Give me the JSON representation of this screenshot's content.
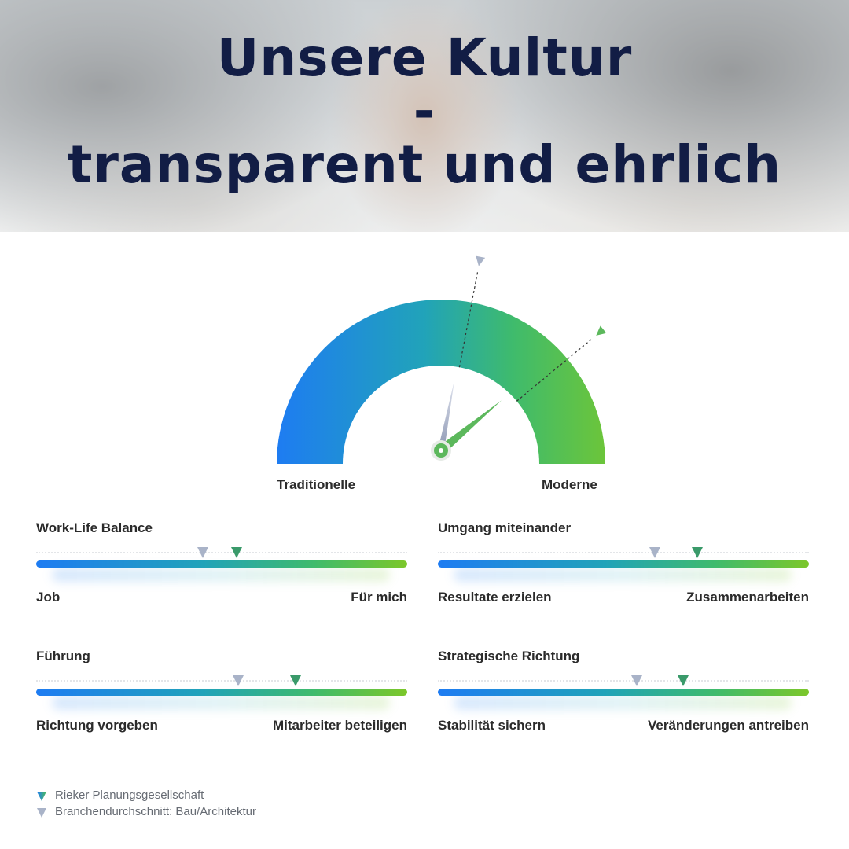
{
  "hero": {
    "title_lines": [
      "Unsere Kultur",
      "-",
      "transparent und ehrlich"
    ]
  },
  "colors": {
    "title": "#121d45",
    "company_marker": "#3a9a6a",
    "average_marker": "#a9b3c8",
    "gradient_start": "#1e7cf2",
    "gradient_mid": "#21a3b9",
    "gradient_end": "#7cc72a"
  },
  "chart_data": [
    {
      "type": "gauge",
      "left_label": "Traditionelle",
      "right_label": "Moderne",
      "range": [
        0,
        1
      ],
      "series": [
        {
          "name": "Rieker Planungsgesellschaft",
          "value": 0.78,
          "color": "#5cb85c"
        },
        {
          "name": "Branchendurchschnitt: Bau/Architektur",
          "value": 0.56,
          "color": "#a9b3c8"
        }
      ]
    },
    {
      "type": "slider",
      "title": "Work-Life Balance",
      "left_label": "Job",
      "right_label": "Für mich",
      "range": [
        0,
        1
      ],
      "company": 0.54,
      "average": 0.45
    },
    {
      "type": "slider",
      "title": "Umgang miteinander",
      "left_label": "Resultate erzielen",
      "right_label": "Zusammenarbeiten",
      "range": [
        0,
        1
      ],
      "company": 0.7,
      "average": 0.585
    },
    {
      "type": "slider",
      "title": "Führung",
      "left_label": "Richtung vorgeben",
      "right_label": "Mitarbeiter beteiligen",
      "range": [
        0,
        1
      ],
      "company": 0.7,
      "average": 0.545
    },
    {
      "type": "slider",
      "title": "Strategische Richtung",
      "left_label": "Stabilität sichern",
      "right_label": "Veränderungen antreiben",
      "range": [
        0,
        1
      ],
      "company": 0.66,
      "average": 0.535
    }
  ],
  "legend": [
    {
      "label": "Rieker Planungsgesellschaft",
      "color": "#3a9a6a"
    },
    {
      "label": "Branchendurchschnitt: Bau/Architektur",
      "color": "#a9b3c8"
    }
  ]
}
